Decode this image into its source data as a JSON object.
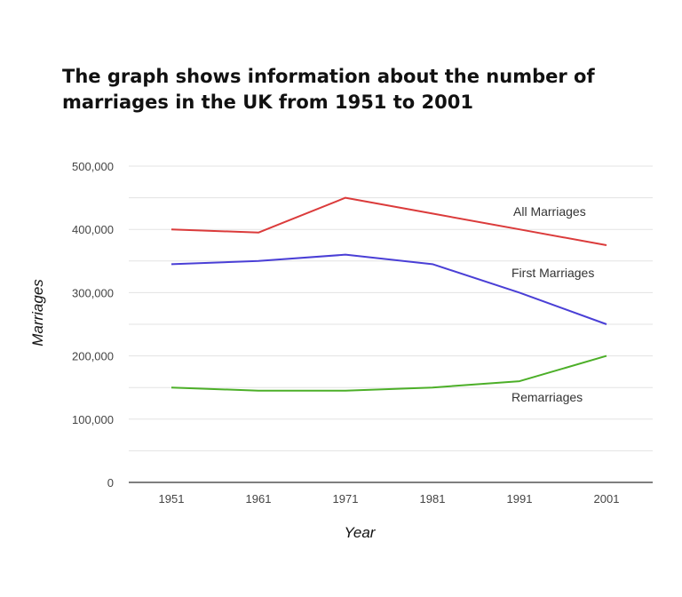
{
  "chart_data": {
    "type": "line",
    "title": "The graph shows information about the number of marriages in the UK from 1951 to 2001",
    "xlabel": "Year",
    "ylabel": "Marriages",
    "categories": [
      "1951",
      "1961",
      "1971",
      "1981",
      "1991",
      "2001"
    ],
    "y_ticks": [
      "0",
      "100,000",
      "200,000",
      "300,000",
      "400,000",
      "500,000"
    ],
    "ylim": [
      0,
      500000
    ],
    "grid": true,
    "legend": "inline labels",
    "series": [
      {
        "name": "All Marriages",
        "color": "#db3b3b",
        "values": [
          400000,
          395000,
          450000,
          425000,
          400000,
          375000
        ]
      },
      {
        "name": "First  Marriages",
        "color": "#4a3fd6",
        "values": [
          345000,
          350000,
          360000,
          345000,
          300000,
          250000
        ]
      },
      {
        "name": "Remarriages",
        "color": "#4caf28",
        "values": [
          150000,
          145000,
          145000,
          150000,
          160000,
          200000
        ]
      }
    ]
  }
}
